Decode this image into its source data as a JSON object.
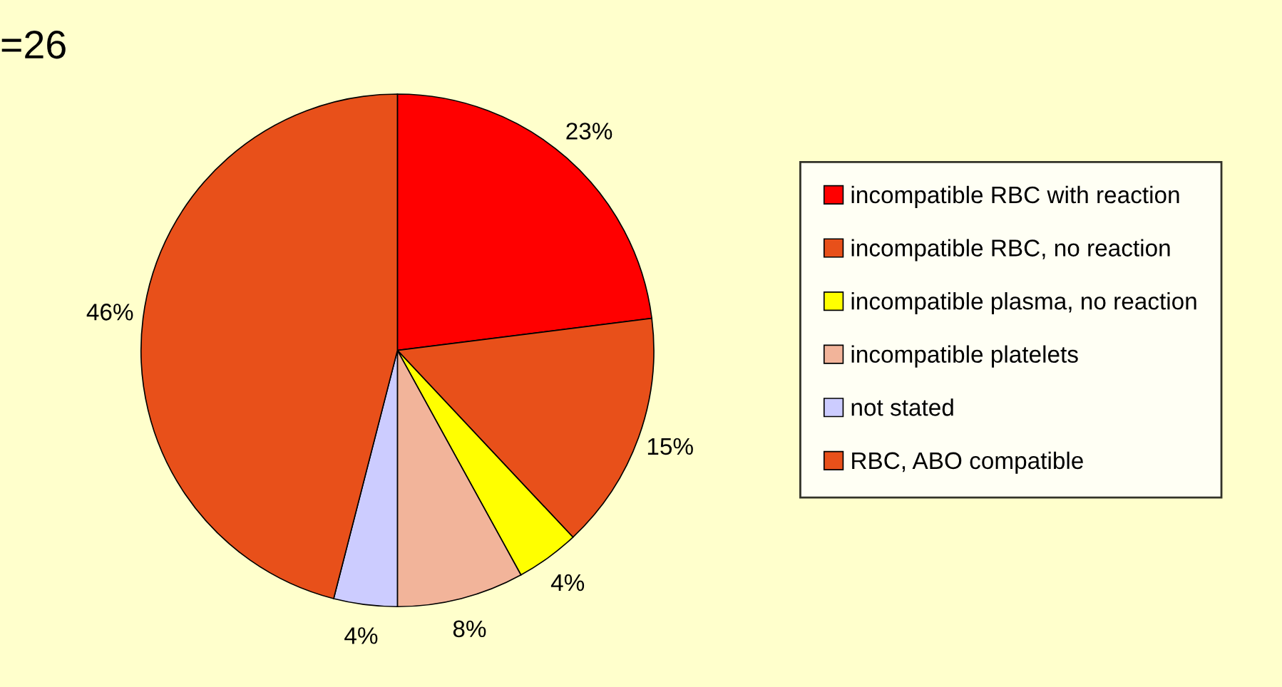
{
  "chart_data": {
    "type": "pie",
    "annotations": [
      "=26"
    ],
    "categories": [
      "incompatible RBC with reaction",
      "incompatible RBC, no reaction",
      "incompatible plasma, no reaction",
      "incompatible platelets",
      "not stated",
      "RBC, ABO compatible"
    ],
    "values": [
      23,
      15,
      4,
      8,
      4,
      46
    ],
    "value_labels": [
      "23%",
      "15%",
      "4%",
      "8%",
      "4%",
      "46%"
    ],
    "colors": [
      "#ff0000",
      "#e8501a",
      "#ffff00",
      "#f2b49a",
      "#ccccff",
      "#e8501a"
    ],
    "legend": "right"
  }
}
